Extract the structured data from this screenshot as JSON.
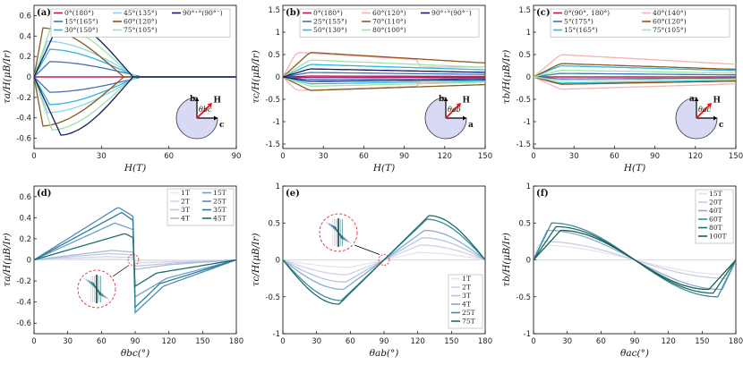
{
  "figure": "torque magnetization panels",
  "chart_data": [
    {
      "id": "a",
      "panel_label": "(a)",
      "type": "line",
      "xlabel": "H(T)",
      "ylabel": "τa/H(μB/Ir)",
      "xlim": [
        0,
        90
      ],
      "ylim": [
        -0.7,
        0.7
      ],
      "xticks": [
        0,
        30,
        60,
        90
      ],
      "yticks": [
        -0.6,
        -0.4,
        -0.2,
        0,
        0.2,
        0.4,
        0.6
      ],
      "ytick_labels": [
        "-0.6",
        "-0.4",
        "-0.2",
        "0",
        "0.2",
        "0.4",
        "0.6"
      ],
      "legend_cols": 3,
      "inset": {
        "up": "b",
        "right": "c",
        "angle": "θbc",
        "field": "H"
      },
      "series": [
        {
          "name": "0°(180°)",
          "color": "#b8185e",
          "peak": 0.0,
          "xc": 6,
          "xe": 50
        },
        {
          "name": "15°(165°)",
          "color": "#3e74b8",
          "peak": 0.15,
          "xc": 7,
          "xe": 48
        },
        {
          "name": "30°(150°)",
          "color": "#2fb5e0",
          "peak": 0.27,
          "xc": 7,
          "xe": 46
        },
        {
          "name": "45°(135°)",
          "color": "#8fd4ea",
          "peak": 0.35,
          "xc": 6,
          "xe": 46
        },
        {
          "name": "60°(120°)",
          "color": "#8b5a20",
          "peak": 0.48,
          "xc": 4,
          "xe": 40
        },
        {
          "name": "75°(105°)",
          "color": "#9de6a8",
          "peak": 0.52,
          "xc": 8,
          "xe": 44
        },
        {
          "name": "90°⁺°(90°⁻)",
          "color": "#141a64",
          "peak": 0.57,
          "xc": 12,
          "xe": 44
        }
      ]
    },
    {
      "id": "b",
      "panel_label": "(b)",
      "type": "line",
      "xlabel": "H(T)",
      "ylabel": "τc/H(μB/Ir)",
      "xlim": [
        0,
        150
      ],
      "ylim": [
        -1.6,
        1.6
      ],
      "xticks": [
        0,
        30,
        60,
        90,
        120,
        150
      ],
      "yticks": [
        -1.5,
        -1,
        -0.5,
        0,
        0.5,
        1,
        1.5
      ],
      "ytick_labels": [
        "-1.5",
        "-1",
        "-0.5",
        "0",
        "0.5",
        "1",
        "1.5"
      ],
      "legend_cols": 3,
      "inset": {
        "up": "b",
        "right": "a",
        "angle": "θab",
        "field": "H"
      },
      "series": [
        {
          "name": "0°(180°)",
          "color": "#b8185e",
          "peak": 0.02,
          "xc": 20,
          "xe": 150
        },
        {
          "name": "25°(155°)",
          "color": "#3e74b8",
          "peak": 0.1,
          "xc": 20,
          "xe": 150
        },
        {
          "name": "50°(130°)",
          "color": "#2fb5e0",
          "peak": 0.28,
          "xc": 20,
          "xe": 150
        },
        {
          "name": "60°(120°)",
          "color": "#f4b3b3",
          "peak": 0.55,
          "xc": 10,
          "xe": 100
        },
        {
          "name": "70°(110°)",
          "color": "#8b5a20",
          "peak": 0.55,
          "xc": 20,
          "xe": 150
        },
        {
          "name": "80°(100°)",
          "color": "#9de6a8",
          "peak": 0.38,
          "xc": 20,
          "xe": 150
        },
        {
          "name": "90°⁺°(90°⁻)",
          "color": "#141a64",
          "peak": 0.18,
          "xc": 20,
          "xe": 150
        }
      ]
    },
    {
      "id": "c",
      "panel_label": "(c)",
      "type": "line",
      "xlabel": "H(T)",
      "ylabel": "τb/H(μB/Ir)",
      "xlim": [
        0,
        150
      ],
      "ylim": [
        -1.6,
        1.6
      ],
      "xticks": [
        0,
        30,
        60,
        90,
        120,
        150
      ],
      "yticks": [
        -1.5,
        -1,
        -0.5,
        0,
        0.5,
        1,
        1.5
      ],
      "ytick_labels": [
        "-1.5",
        "-1",
        "-0.5",
        "0",
        "0.5",
        "1",
        "1.5"
      ],
      "legend_cols": 2,
      "inset": {
        "up": "a",
        "right": "c",
        "angle": "θac",
        "field": "H"
      },
      "series": [
        {
          "name": "0°(90°, 180°)",
          "color": "#b8185e",
          "peak": 0.0,
          "xc": 20,
          "xe": 150
        },
        {
          "name": "5°(175°)",
          "color": "#3e74b8",
          "peak": 0.08,
          "xc": 20,
          "xe": 150
        },
        {
          "name": "15°(165°)",
          "color": "#2fb5e0",
          "peak": 0.25,
          "xc": 20,
          "xe": 150
        },
        {
          "name": "40°(140°)",
          "color": "#f4b3b3",
          "peak": 0.5,
          "xc": 20,
          "xe": 150
        },
        {
          "name": "60°(120°)",
          "color": "#8b5a20",
          "peak": 0.3,
          "xc": 20,
          "xe": 150
        },
        {
          "name": "75°(105°)",
          "color": "#9de6a8",
          "peak": 0.15,
          "xc": 20,
          "xe": 150
        }
      ]
    },
    {
      "id": "d",
      "panel_label": "(d)",
      "type": "line",
      "xlabel": "θbc(°)",
      "ylabel": "τa/H(μB/Ir)",
      "xlim": [
        0,
        180
      ],
      "ylim": [
        -0.7,
        0.7
      ],
      "xticks": [
        0,
        30,
        60,
        90,
        120,
        150,
        180
      ],
      "yticks": [
        -0.6,
        -0.4,
        -0.2,
        0,
        0.2,
        0.4,
        0.6
      ],
      "ytick_labels": [
        "-0.6",
        "-0.4",
        "-0.2",
        "0",
        "0.2",
        "0.4",
        "0.6"
      ],
      "legend_cols": 2,
      "series": [
        {
          "name": "1T",
          "color": "#ece9f4",
          "amp": 0.01
        },
        {
          "name": "2T",
          "color": "#d8d4e8",
          "amp": 0.03
        },
        {
          "name": "3T",
          "color": "#c0c8e0",
          "amp": 0.06
        },
        {
          "name": "4T",
          "color": "#a8bcd8",
          "amp": 0.09
        },
        {
          "name": "15T",
          "color": "#6f9cc8",
          "amp": 0.35
        },
        {
          "name": "25T",
          "color": "#4f8cbc",
          "amp": 0.5
        },
        {
          "name": "35T",
          "color": "#2b7e96",
          "amp": 0.45
        },
        {
          "name": "45T",
          "color": "#1f6e6a",
          "amp": 0.25
        }
      ]
    },
    {
      "id": "e",
      "panel_label": "(e)",
      "type": "line",
      "xlabel": "θab(°)",
      "ylabel": "τc/H(μB/Ir)",
      "xlim": [
        0,
        180
      ],
      "ylim": [
        -1,
        1
      ],
      "xticks": [
        0,
        30,
        60,
        90,
        120,
        150,
        180
      ],
      "yticks": [
        -1,
        -0.5,
        0,
        0.5,
        1
      ],
      "ytick_labels": [
        "-1",
        "-0.5",
        "0",
        "0.5",
        "1"
      ],
      "legend_cols": 1,
      "series": [
        {
          "name": "1T",
          "color": "#e6e3f0",
          "amp": 0.1
        },
        {
          "name": "2T",
          "color": "#d2d0e6",
          "amp": 0.2
        },
        {
          "name": "3T",
          "color": "#b3c6e0",
          "amp": 0.3
        },
        {
          "name": "4T",
          "color": "#88acd4",
          "amp": 0.4
        },
        {
          "name": "25T",
          "color": "#3a8ea0",
          "amp": 0.55
        },
        {
          "name": "75T",
          "color": "#1e6e64",
          "amp": 0.6
        }
      ]
    },
    {
      "id": "f",
      "panel_label": "(f)",
      "type": "line",
      "xlabel": "θac(°)",
      "ylabel": "τb/H(μB/Ir)",
      "xlim": [
        0,
        180
      ],
      "ylim": [
        -1,
        1
      ],
      "xticks": [
        0,
        30,
        60,
        90,
        120,
        150,
        180
      ],
      "yticks": [
        -1,
        -0.5,
        0,
        0.5,
        1
      ],
      "ytick_labels": [
        "-1",
        "-0.5",
        "0",
        "0.5",
        "1"
      ],
      "legend_cols": 1,
      "series": [
        {
          "name": "15T",
          "color": "#e6e3f0",
          "amp": 0.2
        },
        {
          "name": "20T",
          "color": "#c8cce2",
          "amp": 0.25
        },
        {
          "name": "40T",
          "color": "#88acd4",
          "amp": 0.4
        },
        {
          "name": "60T",
          "color": "#3a8ea0",
          "amp": 0.5
        },
        {
          "name": "80T",
          "color": "#1e6e64",
          "amp": 0.45
        },
        {
          "name": "100T",
          "color": "#1a5c50",
          "amp": 0.4
        }
      ]
    }
  ]
}
